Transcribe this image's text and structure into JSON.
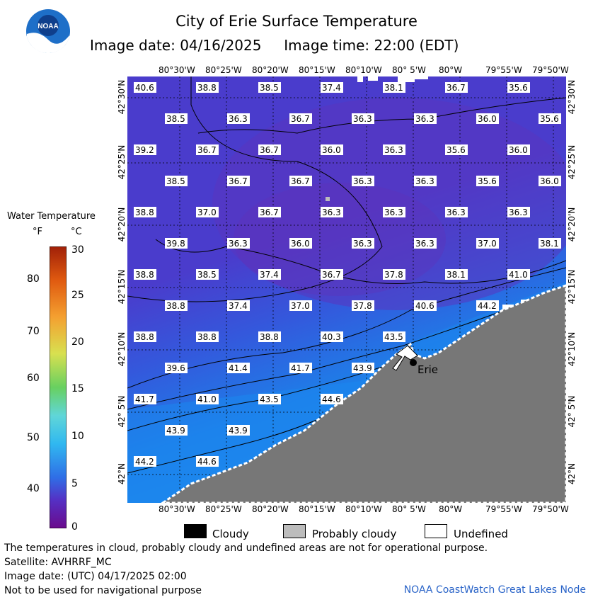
{
  "header": {
    "title": "City of Erie Surface Temperature",
    "subtitle": "Image date: 04/16/2025     Image time: 22:00 (EDT)",
    "logo_text": "NOAA"
  },
  "axes": {
    "top_lon": [
      "80°30'W",
      "80°25'W",
      "80°20'W",
      "80°15'W",
      "80°10'W",
      "80° 5'W",
      "80°W",
      "79°55'W",
      "79°50'W"
    ],
    "bottom_lon": [
      "80°30'W",
      "80°25'W",
      "80°20'W",
      "80°15'W",
      "80°10'W",
      "80° 5'W",
      "80°W",
      "79°55'W",
      "79°50'W"
    ],
    "lat": [
      "42°30'N",
      "42°25'N",
      "42°20'N",
      "42°15'N",
      "42°10'N",
      "42° 5'N",
      "42°N"
    ]
  },
  "map": {
    "city_label": "Erie",
    "temperature_labels": [
      [
        "40.6",
        "38.8",
        "38.5",
        "37.4",
        "38.1",
        "36.7",
        "35.6"
      ],
      [
        "38.5",
        "36.3",
        "36.7",
        "36.3",
        "36.3",
        "36.0",
        "35.6"
      ],
      [
        "39.2",
        "36.7",
        "36.7",
        "36.0",
        "36.3",
        "35.6",
        "36.0"
      ],
      [
        "38.5",
        "36.7",
        "36.7",
        "36.3",
        "36.3",
        "35.6",
        "36.0"
      ],
      [
        "38.8",
        "37.0",
        "36.7",
        "36.3",
        "36.3",
        "36.3",
        "36.3"
      ],
      [
        "39.8",
        "36.3",
        "36.0",
        "36.3",
        "36.3",
        "37.0",
        "38.1"
      ],
      [
        "38.8",
        "38.5",
        "37.4",
        "36.7",
        "37.8",
        "38.1",
        "41.0"
      ],
      [
        "38.8",
        "37.4",
        "37.0",
        "37.8",
        "40.6",
        "44.2"
      ],
      [
        "38.8",
        "38.8",
        "38.8",
        "40.3",
        "43.5"
      ],
      [
        "39.6",
        "41.4",
        "41.7",
        "43.9"
      ],
      [
        "41.7",
        "41.0",
        "43.5",
        "44.6"
      ],
      [
        "43.9",
        "43.9"
      ],
      [
        "44.2",
        "44.6"
      ]
    ],
    "colors": {
      "land": "#777777",
      "water_cold": "#5a3cc4",
      "water_warm": "#1e7ee8"
    }
  },
  "legend": {
    "title": "Water Temperature",
    "unit_f": "°F",
    "unit_c": "°C",
    "f_labels": [
      "80",
      "70",
      "60",
      "50",
      "40"
    ],
    "c_labels": [
      "30",
      "25",
      "20",
      "15",
      "10",
      "5",
      "0"
    ]
  },
  "key": [
    {
      "label": "Cloudy",
      "color": "#000000"
    },
    {
      "label": "Probably cloudy",
      "color": "#bcbcbc"
    },
    {
      "label": "Undefined",
      "color": "#ffffff"
    }
  ],
  "footer": {
    "disclaimer": "The temperatures in cloud, probably cloudy and undefined areas are not for operational purpose.",
    "satellite": "Satellite: AVHRRF_MC",
    "utc_date": "Image date: (UTC) 04/17/2025  02:00",
    "nav": "Not to be used for navigational purpose",
    "credit": "NOAA CoastWatch Great Lakes Node"
  }
}
